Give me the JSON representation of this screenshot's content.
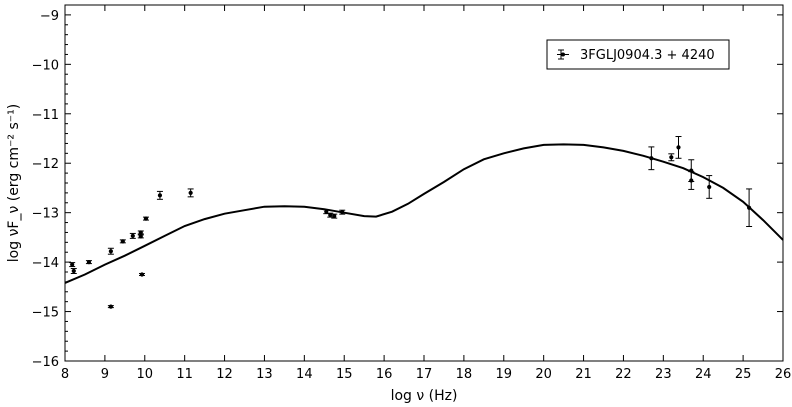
{
  "chart_data": {
    "type": "scatter",
    "title": "",
    "xlabel": "log ν (Hz)",
    "ylabel": "log νF_ν (erg cm⁻² s⁻¹)",
    "xlim": [
      8,
      26
    ],
    "ylim": [
      -16,
      -8.8
    ],
    "x_ticks": [
      8,
      9,
      10,
      11,
      12,
      13,
      14,
      15,
      16,
      17,
      18,
      19,
      20,
      21,
      22,
      23,
      24,
      25,
      26
    ],
    "x_tick_labels": [
      "8",
      "9",
      "10",
      "11",
      "12",
      "13",
      "14",
      "15",
      "16",
      "17",
      "18",
      "19",
      "20",
      "21",
      "22",
      "23",
      "24",
      "25",
      "26"
    ],
    "y_ticks": [
      -16,
      -15,
      -14,
      -13,
      -12,
      -11,
      -10,
      -9
    ],
    "y_tick_labels": [
      "−16",
      "−15",
      "−14",
      "−13",
      "−12",
      "−11",
      "−10",
      "−9"
    ],
    "grid": false,
    "legend": {
      "position": "top-right",
      "entries": [
        "3FGLJ0904.3 + 4240"
      ]
    },
    "series": [
      {
        "name": "3FGLJ0904.3 + 4240",
        "points": [
          {
            "x": 8.18,
            "y": -14.05,
            "yerr": 0.04
          },
          {
            "x": 8.22,
            "y": -14.18,
            "yerr": 0.05
          },
          {
            "x": 8.6,
            "y": -14.0,
            "yerr": 0.03
          },
          {
            "x": 9.15,
            "y": -13.78,
            "yerr": 0.06
          },
          {
            "x": 9.15,
            "y": -14.9,
            "yerr": 0.02
          },
          {
            "x": 9.45,
            "y": -13.58,
            "yerr": 0.03
          },
          {
            "x": 9.7,
            "y": -13.47,
            "yerr": 0.05
          },
          {
            "x": 9.9,
            "y": -13.4,
            "yerr": 0.03
          },
          {
            "x": 9.9,
            "y": -13.48,
            "yerr": 0.03
          },
          {
            "x": 9.93,
            "y": -14.25,
            "yerr": 0.02
          },
          {
            "x": 10.03,
            "y": -13.12,
            "yerr": 0.03
          },
          {
            "x": 10.38,
            "y": -12.65,
            "yerr": 0.08
          },
          {
            "x": 11.15,
            "y": -12.6,
            "yerr": 0.08
          },
          {
            "x": 14.55,
            "y": -12.98,
            "yerr": 0.04
          },
          {
            "x": 14.65,
            "y": -13.05,
            "yerr": 0.04
          },
          {
            "x": 14.75,
            "y": -13.07,
            "yerr": 0.04
          },
          {
            "x": 14.95,
            "y": -12.99,
            "yerr": 0.04
          },
          {
            "x": 22.7,
            "y": -11.9,
            "yerr": 0.23
          },
          {
            "x": 23.2,
            "y": -11.88,
            "yerr": 0.07
          },
          {
            "x": 23.38,
            "y": -11.68,
            "yerr": 0.22
          },
          {
            "x": 23.7,
            "y": -12.15,
            "yerr": 0.22
          },
          {
            "x": 23.7,
            "y": -12.35,
            "yerr": 0.18
          },
          {
            "x": 24.15,
            "y": -12.48,
            "yerr": 0.23
          },
          {
            "x": 25.15,
            "y": -12.9,
            "yerr": 0.38
          }
        ]
      },
      {
        "name": "",
        "style": "line",
        "x": [
          8.0,
          8.5,
          9.0,
          9.5,
          10.0,
          10.5,
          11.0,
          11.5,
          12.0,
          12.5,
          13.0,
          13.5,
          14.0,
          14.5,
          15.0,
          15.5,
          15.8,
          16.2,
          16.6,
          17.0,
          17.5,
          18.0,
          18.5,
          19.0,
          19.5,
          20.0,
          20.5,
          21.0,
          21.5,
          22.0,
          22.5,
          23.0,
          23.5,
          24.0,
          24.5,
          25.0,
          25.5,
          26.0
        ],
        "y": [
          -14.42,
          -14.25,
          -14.05,
          -13.87,
          -13.67,
          -13.47,
          -13.27,
          -13.13,
          -13.02,
          -12.95,
          -12.88,
          -12.87,
          -12.88,
          -12.93,
          -13.0,
          -13.07,
          -13.08,
          -12.98,
          -12.82,
          -12.62,
          -12.38,
          -12.12,
          -11.92,
          -11.8,
          -11.7,
          -11.63,
          -11.62,
          -11.63,
          -11.68,
          -11.75,
          -11.85,
          -11.97,
          -12.1,
          -12.28,
          -12.5,
          -12.78,
          -13.15,
          -13.55
        ]
      }
    ]
  }
}
